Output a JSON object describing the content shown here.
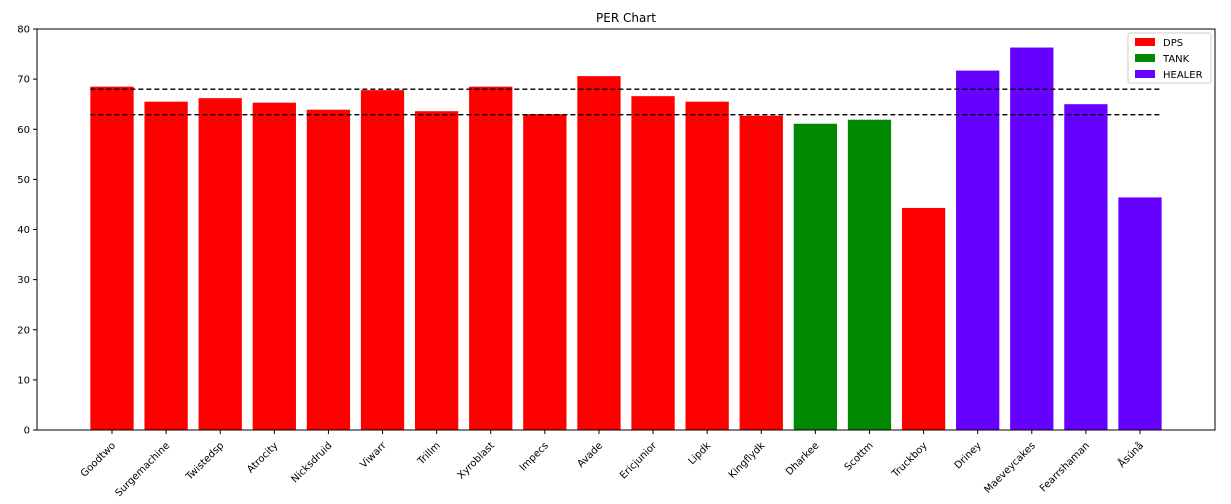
{
  "chart_data": {
    "type": "bar",
    "title": "PER Chart",
    "xlabel": "",
    "ylabel": "",
    "ylim": [
      0,
      80
    ],
    "yticks": [
      0,
      10,
      20,
      30,
      40,
      50,
      60,
      70,
      80
    ],
    "categories": [
      "Goodtwo",
      "Surgemachine",
      "Twistedsp",
      "Atrocity",
      "Nicksdruid",
      "Viwarr",
      "Trillm",
      "Xyroblast",
      "Impecs",
      "Avade",
      "Ericjunior",
      "Lipdk",
      "Kingflydk",
      "Dharkee",
      "Scottm",
      "Truckboy",
      "Driney",
      "Maeveycakes",
      "Fearrshaman",
      "Åsúnå"
    ],
    "values": [
      68.5,
      65.5,
      66.2,
      65.3,
      63.9,
      67.8,
      63.6,
      68.5,
      63.0,
      70.6,
      66.6,
      65.5,
      62.7,
      61.1,
      61.9,
      44.3,
      71.7,
      76.3,
      65.0,
      46.4
    ],
    "roles": [
      "DPS",
      "DPS",
      "DPS",
      "DPS",
      "DPS",
      "DPS",
      "DPS",
      "DPS",
      "DPS",
      "DPS",
      "DPS",
      "DPS",
      "DPS",
      "TANK",
      "TANK",
      "DPS",
      "HEALER",
      "HEALER",
      "HEALER",
      "HEALER"
    ],
    "reference_lines": [
      {
        "style": "dashed",
        "value": 68.0
      },
      {
        "style": "dashed",
        "value": 62.9
      }
    ],
    "legend": {
      "placement": "top-right",
      "entries": [
        {
          "label": "DPS",
          "color": "#ff0000"
        },
        {
          "label": "TANK",
          "color": "#008800"
        },
        {
          "label": "HEALER",
          "color": "#6600ff"
        }
      ]
    },
    "grid": false,
    "colors": {
      "DPS": "#ff0000",
      "TANK": "#008800",
      "HEALER": "#6600ff"
    }
  }
}
